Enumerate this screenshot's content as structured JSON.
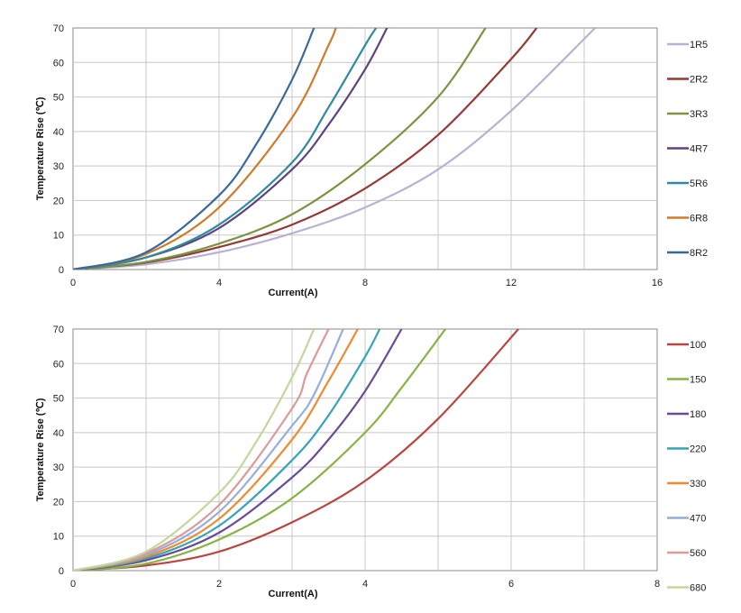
{
  "chart_data": [
    {
      "type": "line",
      "title": "",
      "xlabel": "Current(A)",
      "ylabel": "Temperature Rise (℃)",
      "xlim": [
        0,
        16
      ],
      "ylim": [
        0,
        70
      ],
      "xticks": [
        "0",
        "4",
        "8",
        "12",
        "16"
      ],
      "yticks": [
        "0",
        "10",
        "20",
        "30",
        "40",
        "50",
        "60",
        "70"
      ],
      "grid": true,
      "legend": "right",
      "series": [
        {
          "name": "1R5",
          "color": "#b7b2d4",
          "x": [
            0,
            2,
            4,
            6,
            8,
            10,
            12,
            14.3
          ],
          "y": [
            0,
            1.5,
            5,
            10.5,
            18,
            29,
            46,
            70
          ]
        },
        {
          "name": "2R2",
          "color": "#923a37",
          "x": [
            0,
            2,
            4,
            6,
            8,
            10,
            12,
            12.7
          ],
          "y": [
            0,
            2,
            6.5,
            13,
            23.5,
            39,
            61,
            70
          ]
        },
        {
          "name": "3R3",
          "color": "#7a9440",
          "x": [
            0,
            2,
            4,
            6,
            8,
            10,
            11.3
          ],
          "y": [
            0,
            2.2,
            7.5,
            16,
            30.5,
            50,
            70
          ]
        },
        {
          "name": "4R7",
          "color": "#5d4480",
          "x": [
            0,
            2,
            4,
            6,
            7,
            8,
            8.6
          ],
          "y": [
            0,
            3.5,
            12,
            29,
            42,
            58,
            70
          ]
        },
        {
          "name": "5R6",
          "color": "#2f8aa0",
          "x": [
            0,
            2,
            4,
            6,
            7,
            8,
            8.3
          ],
          "y": [
            0,
            3.5,
            13,
            31,
            47,
            65,
            70
          ]
        },
        {
          "name": "6R8",
          "color": "#d07a2b",
          "x": [
            0,
            2,
            4,
            6,
            7,
            7.2
          ],
          "y": [
            0,
            4.5,
            18,
            44,
            65,
            70
          ]
        },
        {
          "name": "8R2",
          "color": "#38699c",
          "x": [
            0,
            2,
            4,
            5,
            6,
            6.6
          ],
          "y": [
            0,
            5,
            21.5,
            36,
            55,
            70
          ]
        }
      ]
    },
    {
      "type": "line",
      "title": "",
      "xlabel": "Current(A)",
      "ylabel": "Temperature Rise (℃)",
      "xlim": [
        0,
        8
      ],
      "ylim": [
        0,
        70
      ],
      "xticks": [
        "0",
        "2",
        "4",
        "6",
        "8"
      ],
      "yticks": [
        "0",
        "10",
        "20",
        "30",
        "40",
        "50",
        "60",
        "70"
      ],
      "grid": true,
      "legend": "right",
      "series": [
        {
          "name": "100",
          "color": "#b94540",
          "x": [
            0,
            1,
            2,
            3,
            4,
            5,
            6.1
          ],
          "y": [
            0,
            1.5,
            5.5,
            14,
            26,
            44,
            70
          ]
        },
        {
          "name": "150",
          "color": "#86b342",
          "x": [
            0,
            1,
            2,
            3,
            4,
            4.5,
            5.1
          ],
          "y": [
            0,
            2,
            9,
            21,
            40,
            53,
            70
          ]
        },
        {
          "name": "180",
          "color": "#6a4c96",
          "x": [
            0,
            1,
            2,
            3,
            3.5,
            4,
            4.5
          ],
          "y": [
            0,
            3,
            11,
            27,
            38,
            52,
            70
          ]
        },
        {
          "name": "220",
          "color": "#36a3b8",
          "x": [
            0,
            1,
            2,
            3,
            3.5,
            4,
            4.2
          ],
          "y": [
            0,
            3.5,
            13,
            32,
            45,
            62,
            70
          ]
        },
        {
          "name": "330",
          "color": "#f08a2c",
          "x": [
            0,
            1,
            2,
            3,
            3.5,
            3.9
          ],
          "y": [
            0,
            4,
            15,
            38,
            55,
            70
          ]
        },
        {
          "name": "470",
          "color": "#95aedb",
          "x": [
            0,
            1,
            2,
            3,
            3.3,
            3.7
          ],
          "y": [
            0,
            4.5,
            17,
            42,
            51,
            70
          ]
        },
        {
          "name": "560",
          "color": "#d99b98",
          "x": [
            0,
            1,
            2,
            3,
            3.2,
            3.5
          ],
          "y": [
            0,
            5,
            19,
            47,
            57,
            70
          ]
        },
        {
          "name": "680",
          "color": "#c3d69b",
          "x": [
            0,
            1,
            2,
            2.5,
            3,
            3.3
          ],
          "y": [
            0,
            5.5,
            22.5,
            37,
            56,
            70
          ]
        }
      ]
    }
  ]
}
